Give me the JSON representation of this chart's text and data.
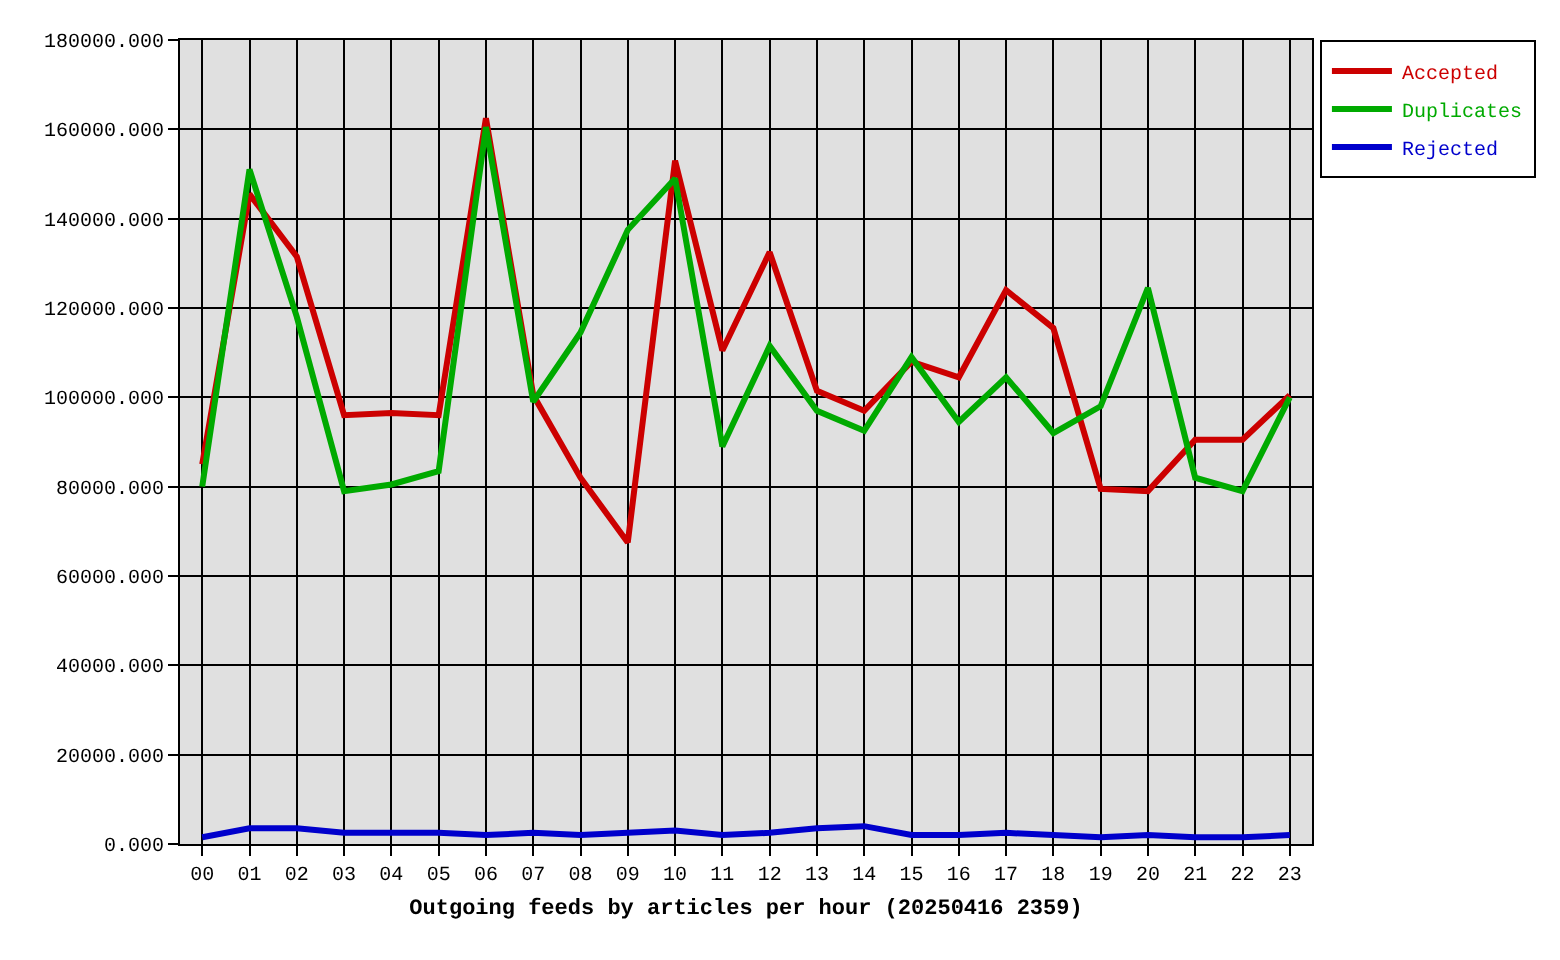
{
  "chart_data": {
    "type": "line",
    "xlabel": "Outgoing feeds by articles per hour (20250416 2359)",
    "categories": [
      "00",
      "01",
      "02",
      "03",
      "04",
      "05",
      "06",
      "07",
      "08",
      "09",
      "10",
      "11",
      "12",
      "13",
      "14",
      "15",
      "16",
      "17",
      "18",
      "19",
      "20",
      "21",
      "22",
      "23"
    ],
    "series": [
      {
        "name": "Accepted",
        "color": "#cc0000",
        "values": [
          85000,
          145500,
          131500,
          96000,
          96500,
          96000,
          162500,
          100500,
          82000,
          67500,
          153000,
          110500,
          132500,
          101500,
          97000,
          108000,
          104500,
          124000,
          115500,
          79500,
          79000,
          90500,
          90500,
          100500
        ]
      },
      {
        "name": "Duplicates",
        "color": "#00aa00",
        "values": [
          80000,
          151000,
          118000,
          79000,
          80500,
          83500,
          160500,
          99000,
          114500,
          137500,
          149000,
          89000,
          111500,
          97000,
          92500,
          109000,
          94500,
          104500,
          92000,
          98000,
          124500,
          82000,
          79000,
          100000
        ]
      },
      {
        "name": "Rejected",
        "color": "#0000cc",
        "values": [
          1500,
          3500,
          3500,
          2500,
          2500,
          2500,
          2000,
          2500,
          2000,
          2500,
          3000,
          2000,
          2500,
          3500,
          4000,
          2000,
          2000,
          2500,
          2000,
          1500,
          2000,
          1500,
          1500,
          2000
        ]
      }
    ],
    "ylim": [
      0,
      180000
    ],
    "yticks": [
      {
        "value": 0,
        "label": "0.000"
      },
      {
        "value": 20000,
        "label": "20000.000"
      },
      {
        "value": 40000,
        "label": "40000.000"
      },
      {
        "value": 60000,
        "label": "60000.000"
      },
      {
        "value": 80000,
        "label": "80000.000"
      },
      {
        "value": 100000,
        "label": "100000.000"
      },
      {
        "value": 120000,
        "label": "120000.000"
      },
      {
        "value": 140000,
        "label": "140000.000"
      },
      {
        "value": 160000,
        "label": "160000.000"
      },
      {
        "value": 180000,
        "label": "180000.000"
      }
    ],
    "grid": true,
    "legend": "top right",
    "line_style": "solid"
  }
}
